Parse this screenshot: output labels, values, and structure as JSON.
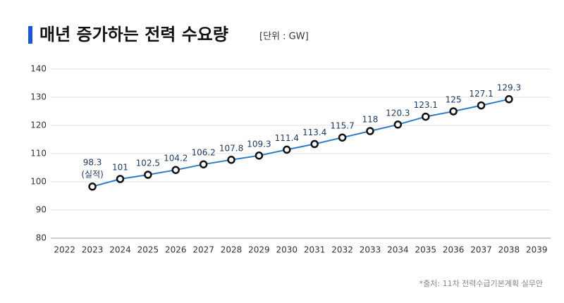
{
  "chart_data": {
    "type": "line",
    "title": "매년 증가하는 전력 수요량",
    "subtitle": "[단위 : GW]",
    "source": "*출처: 11차 전력수급기본계획 실무안",
    "categories": [
      "2022",
      "2023",
      "2024",
      "2025",
      "2026",
      "2027",
      "2028",
      "2029",
      "2030",
      "2031",
      "2032",
      "2033",
      "2034",
      "2035",
      "2036",
      "2037",
      "2038",
      "2039"
    ],
    "series": [
      {
        "name": "전력 수요량",
        "color": "#2f7cc4",
        "values": [
          null,
          98.3,
          101,
          102.5,
          104.2,
          106.2,
          107.8,
          109.3,
          111.4,
          113.4,
          115.7,
          118,
          120.3,
          123.1,
          125,
          127.1,
          129.3,
          null
        ]
      }
    ],
    "annotations": [
      {
        "category": "2023",
        "text": "(실적)"
      }
    ],
    "ylim": [
      80,
      140
    ],
    "yticks": [
      80,
      90,
      100,
      110,
      120,
      130,
      140
    ],
    "grid": true
  }
}
